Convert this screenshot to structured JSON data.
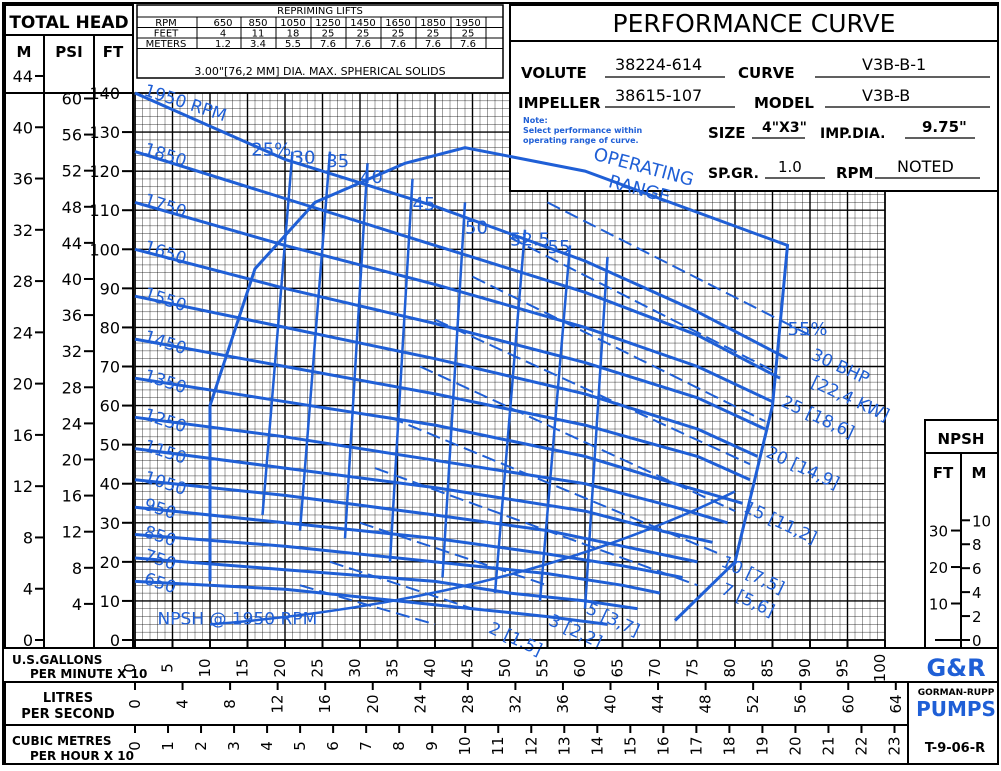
{
  "header": {
    "total_head": "TOTAL HEAD",
    "unit_m": "M",
    "unit_psi": "PSI",
    "unit_ft": "FT",
    "title": "PERFORMANCE CURVE"
  },
  "repriming": {
    "title": "REPRIMING LIFTS",
    "rows": [
      [
        "RPM",
        "650",
        "850",
        "1050",
        "1250",
        "1450",
        "1650",
        "1850",
        "1950"
      ],
      [
        "FEET",
        "4",
        "11",
        "18",
        "25",
        "25",
        "25",
        "25",
        "25"
      ],
      [
        "METERS",
        "1.2",
        "3.4",
        "5.5",
        "7.6",
        "7.6",
        "7.6",
        "7.6",
        "7.6"
      ]
    ],
    "solids": "3.00\"[76,2 MM] DIA. MAX. SPHERICAL SOLIDS"
  },
  "specs": {
    "volute_label": "VOLUTE",
    "volute": "38224-614",
    "curve_label": "CURVE",
    "curve": "V3B-B-1",
    "impeller_label": "IMPELLER",
    "impeller": "38615-107",
    "model_label": "MODEL",
    "model": "V3B-B",
    "note_title": "Note:",
    "note_line1": "Select performance within",
    "note_line2": "operating range of curve.",
    "size_label": "SIZE",
    "size": "4\"X3\"",
    "impdia_label": "IMP.DIA.",
    "impdia": "9.75\"",
    "spgr_label": "SP.GR.",
    "spgr": "1.0",
    "rpm_label": "RPM",
    "rpm": "NOTED"
  },
  "npsh": {
    "title": "NPSH",
    "unit_ft": "FT",
    "unit_m": "M"
  },
  "footer": {
    "gpm_l1": "U.S.GALLONS",
    "gpm_l2": "PER MINUTE X 10",
    "lps_l1": "LITRES",
    "lps_l2": "PER SECOND",
    "cmh_l1": "CUBIC METRES",
    "cmh_l2": "PER HOUR X 10",
    "code": "T-9-06-R"
  },
  "logo": {
    "text1": "G&R",
    "text2": "GORMAN-RUPP",
    "text3": "PUMPS"
  },
  "colors": {
    "curve": "#1f5fd6",
    "grid": "#000000"
  },
  "chart_data": {
    "type": "line",
    "x_unit": "U.S. gallons per minute x 10",
    "xlim": [
      0,
      100
    ],
    "ylim": [
      0,
      140
    ],
    "x_ticks": [
      "0",
      "5",
      "10",
      "15",
      "20",
      "25",
      "30",
      "35",
      "40",
      "45",
      "50",
      "55",
      "60",
      "65",
      "70",
      "75",
      "80",
      "85",
      "90",
      "95",
      "100"
    ],
    "lps_ticks": [
      "0",
      "4",
      "8",
      "12",
      "16",
      "20",
      "24",
      "28",
      "32",
      "36",
      "40",
      "44",
      "48",
      "52",
      "56",
      "60",
      "64"
    ],
    "cmh_ticks": [
      "0",
      "1",
      "2",
      "3",
      "4",
      "5",
      "6",
      "7",
      "8",
      "9",
      "10",
      "11",
      "12",
      "13",
      "14",
      "15",
      "16",
      "17",
      "18",
      "19",
      "20",
      "21",
      "22",
      "23"
    ],
    "ft_ticks": [
      "0",
      "10",
      "20",
      "30",
      "40",
      "50",
      "60",
      "70",
      "80",
      "90",
      "100",
      "110",
      "120",
      "130",
      "140"
    ],
    "psi_ticks": [
      "4",
      "8",
      "12",
      "16",
      "20",
      "24",
      "28",
      "32",
      "36",
      "40",
      "44",
      "48",
      "52",
      "56",
      "60"
    ],
    "m_ticks": [
      "0",
      "4",
      "8",
      "12",
      "16",
      "20",
      "24",
      "28",
      "32",
      "36",
      "40",
      "44"
    ],
    "npsh_ft_ticks": [
      "10",
      "20",
      "30"
    ],
    "npsh_m_ticks": [
      "0",
      "2",
      "4",
      "6",
      "8",
      "10"
    ],
    "series": [
      {
        "name": "1950 RPM",
        "x": [
          0,
          20,
          40,
          60,
          75,
          87
        ],
        "y": [
          140,
          123,
          111,
          97,
          84,
          72
        ]
      },
      {
        "name": "1850",
        "x": [
          0,
          20,
          40,
          60,
          75,
          86
        ],
        "y": [
          125,
          113,
          101,
          89,
          78,
          67
        ]
      },
      {
        "name": "1750",
        "x": [
          0,
          20,
          40,
          60,
          75,
          85
        ],
        "y": [
          112,
          101,
          91,
          80,
          70,
          61
        ]
      },
      {
        "name": "1650",
        "x": [
          0,
          20,
          40,
          60,
          75,
          84
        ],
        "y": [
          100,
          90,
          81,
          71,
          62,
          54
        ]
      },
      {
        "name": "1550",
        "x": [
          0,
          20,
          40,
          60,
          75,
          83
        ],
        "y": [
          88,
          80,
          72,
          63,
          54,
          47
        ]
      },
      {
        "name": "1450",
        "x": [
          0,
          20,
          40,
          60,
          75,
          82
        ],
        "y": [
          77,
          70,
          63,
          55,
          47,
          41
        ]
      },
      {
        "name": "1350",
        "x": [
          0,
          20,
          40,
          60,
          72,
          81
        ],
        "y": [
          67,
          61,
          55,
          47,
          40,
          35
        ]
      },
      {
        "name": "1250",
        "x": [
          0,
          20,
          40,
          60,
          72,
          79
        ],
        "y": [
          57,
          52,
          46,
          40,
          34,
          30
        ]
      },
      {
        "name": "1150",
        "x": [
          0,
          20,
          40,
          60,
          70,
          77
        ],
        "y": [
          49,
          44,
          39,
          33,
          28,
          25
        ]
      },
      {
        "name": "1050",
        "x": [
          0,
          20,
          40,
          55,
          65,
          75
        ],
        "y": [
          41,
          37,
          32,
          28,
          24,
          20
        ]
      },
      {
        "name": "950",
        "x": [
          0,
          20,
          40,
          55,
          65,
          73
        ],
        "y": [
          34,
          30,
          26,
          22,
          19,
          16
        ]
      },
      {
        "name": "850",
        "x": [
          0,
          20,
          40,
          55,
          65,
          70
        ],
        "y": [
          27,
          24,
          20,
          17,
          14,
          12
        ]
      },
      {
        "name": "750",
        "x": [
          0,
          20,
          40,
          50,
          60,
          67
        ],
        "y": [
          21,
          18,
          15,
          12,
          10,
          8
        ]
      },
      {
        "name": "650",
        "x": [
          0,
          20,
          35,
          45,
          55,
          63
        ],
        "y": [
          15,
          13,
          10,
          8,
          6,
          4
        ]
      }
    ],
    "bhp_labels": [
      "30 BHP",
      "[22,4 KW]",
      "25 [18,6]",
      "20 [14,9]",
      "15 [11,2]",
      "10 [7,5]",
      "7 [5,6]",
      "5 [3,7]",
      "3 [2,2]",
      "2 [1,5]"
    ],
    "efficiency_labels": [
      "25%",
      "30",
      "35",
      "40",
      "45",
      "50",
      "52.5",
      "55",
      "55%"
    ],
    "annotations": [
      "OPERATING",
      "RANGE",
      "NPSH @ 1950 RPM"
    ]
  }
}
